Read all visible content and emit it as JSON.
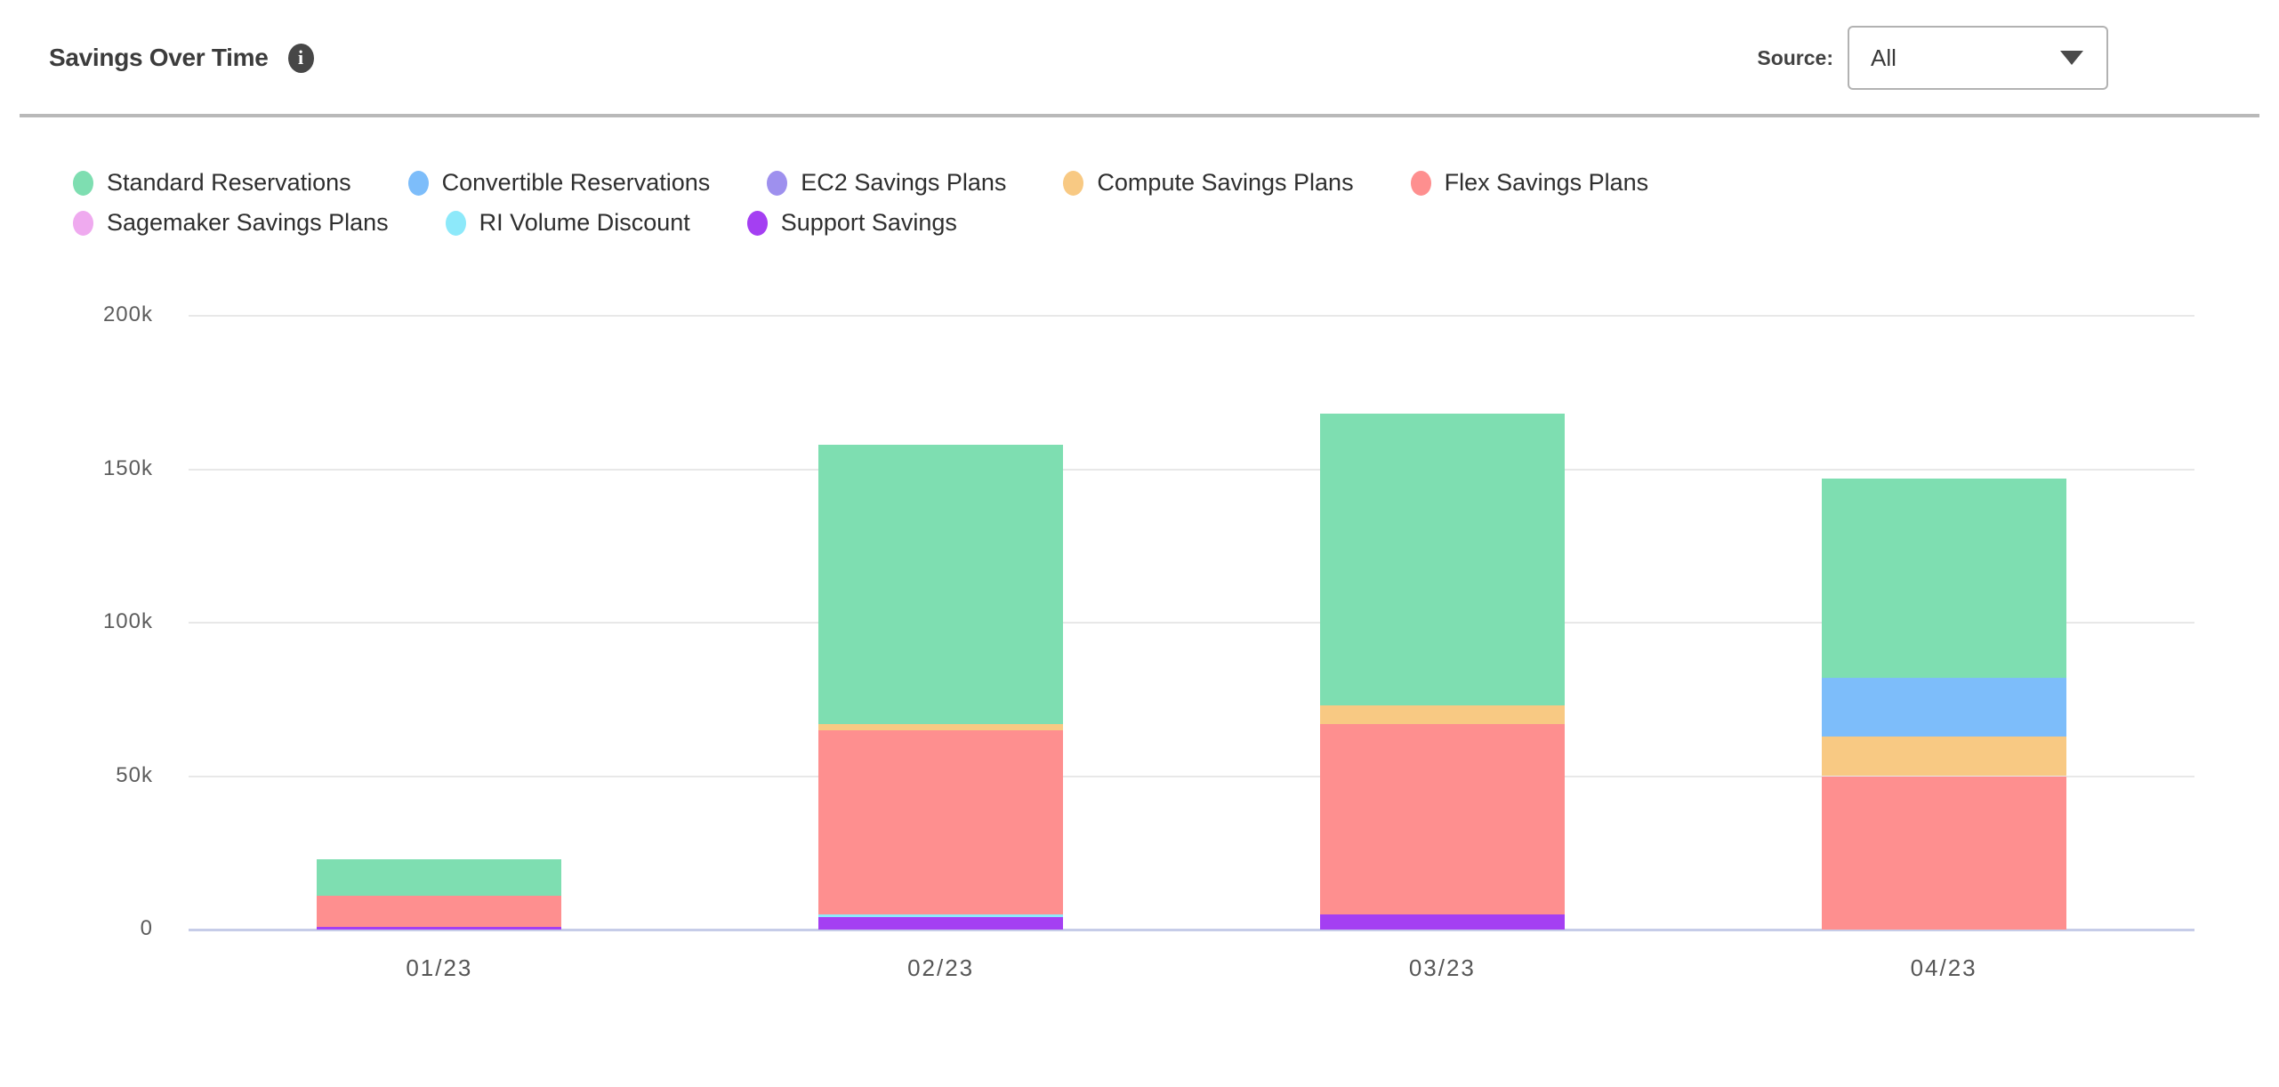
{
  "header": {
    "title": "Savings Over Time",
    "info_icon": "i",
    "source_label": "Source:",
    "source_value": "All"
  },
  "legend": [
    {
      "label": "Standard Reservations",
      "color": "#7EDEB1"
    },
    {
      "label": "Convertible Reservations",
      "color": "#7DBDFA"
    },
    {
      "label": "EC2 Savings Plans",
      "color": "#9E90EE"
    },
    {
      "label": "Compute Savings Plans",
      "color": "#F8C983"
    },
    {
      "label": "Flex Savings Plans",
      "color": "#FE8F8F"
    },
    {
      "label": "Sagemaker Savings Plans",
      "color": "#EFAAEF"
    },
    {
      "label": "RI Volume Discount",
      "color": "#8DE9FA"
    },
    {
      "label": "Support Savings",
      "color": "#A43FF2"
    }
  ],
  "chart_data": {
    "type": "bar",
    "stacked": true,
    "title": "Savings Over Time",
    "xlabel": "",
    "ylabel": "",
    "categories": [
      "01/23",
      "02/23",
      "03/23",
      "04/23"
    ],
    "series": [
      {
        "name": "Standard Reservations",
        "color": "#7EDEB1",
        "values": [
          12000,
          91000,
          95000,
          65000
        ]
      },
      {
        "name": "Convertible Reservations",
        "color": "#7DBDFA",
        "values": [
          0,
          0,
          0,
          19000
        ]
      },
      {
        "name": "EC2 Savings Plans",
        "color": "#9E90EE",
        "values": [
          0,
          0,
          0,
          0
        ]
      },
      {
        "name": "Compute Savings Plans",
        "color": "#F8C983",
        "values": [
          0,
          2000,
          6000,
          13000
        ]
      },
      {
        "name": "Flex Savings Plans",
        "color": "#FE8F8F",
        "values": [
          10000,
          60000,
          62000,
          50000
        ]
      },
      {
        "name": "Sagemaker Savings Plans",
        "color": "#EFAAEF",
        "values": [
          0,
          0,
          0,
          0
        ]
      },
      {
        "name": "RI Volume Discount",
        "color": "#8DE9FA",
        "values": [
          0,
          1000,
          0,
          0
        ]
      },
      {
        "name": "Support Savings",
        "color": "#A43FF2",
        "values": [
          1000,
          4000,
          5000,
          0
        ]
      }
    ],
    "stack_order_bottom_to_top": [
      "Support Savings",
      "RI Volume Discount",
      "Sagemaker Savings Plans",
      "Flex Savings Plans",
      "Compute Savings Plans",
      "EC2 Savings Plans",
      "Convertible Reservations",
      "Standard Reservations"
    ],
    "totals": [
      23000,
      158000,
      168000,
      147000
    ],
    "y_ticks": [
      "0",
      "50k",
      "100k",
      "150k",
      "200k"
    ],
    "y_tick_values": [
      0,
      50000,
      100000,
      150000,
      200000
    ],
    "ylim": [
      0,
      200000
    ],
    "grid": true,
    "legend_position": "top"
  }
}
